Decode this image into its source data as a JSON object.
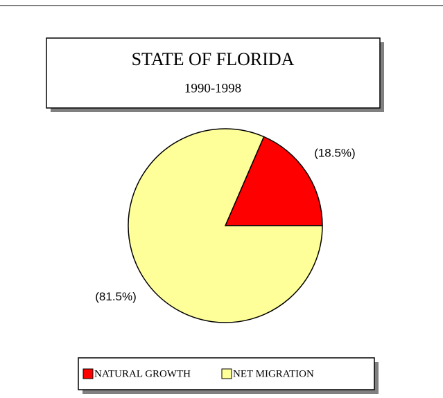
{
  "chart_data": {
    "type": "pie",
    "title": "STATE OF FLORIDA",
    "subtitle": "1990-1998",
    "categories": [
      "NATURAL GROWTH",
      "NET MIGRATION"
    ],
    "values": [
      18.5,
      81.5
    ],
    "value_labels": [
      "(18.5%)",
      "(81.5%)"
    ],
    "colors": [
      "#ff0000",
      "#ffff99"
    ],
    "legend": "bottom"
  }
}
